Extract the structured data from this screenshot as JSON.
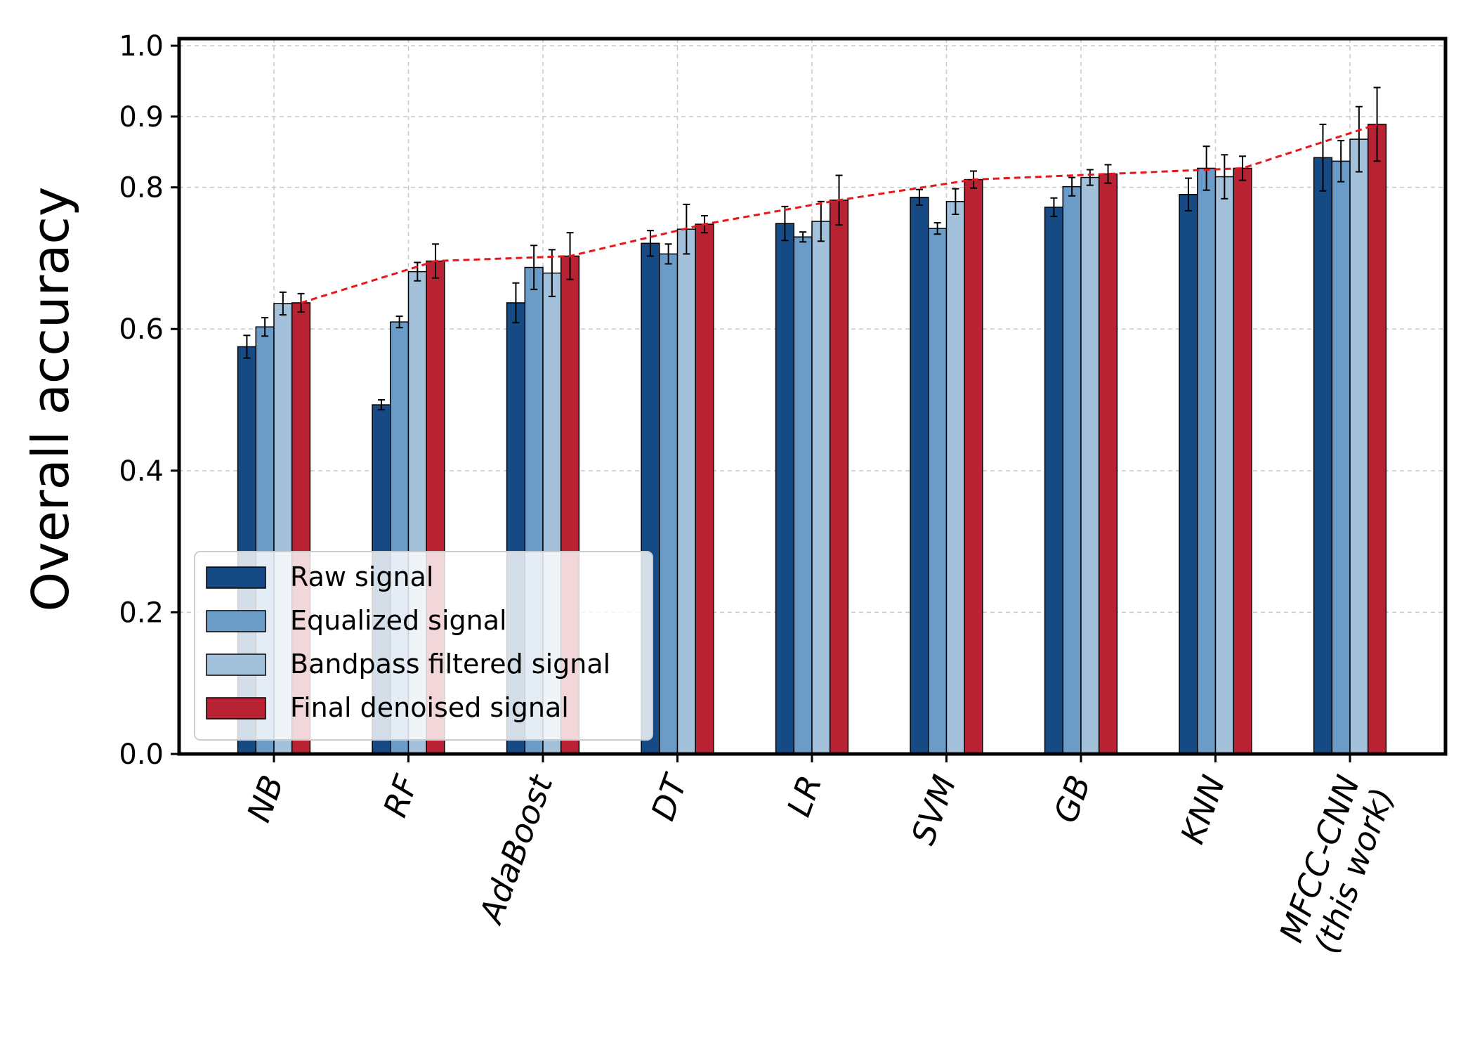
{
  "chart_data": {
    "type": "bar",
    "title": "",
    "xlabel": "",
    "ylabel": "Overall accuracy",
    "ylim": [
      0,
      1.01
    ],
    "yticks": [
      "0.0",
      "0.2",
      "0.4",
      "0.6",
      "0.8",
      "0.9",
      "1.0"
    ],
    "ytick_values": [
      0.0,
      0.2,
      0.4,
      0.6,
      0.8,
      0.9,
      1.0
    ],
    "grid": true,
    "legend_position": "lower-left",
    "categories": [
      "NB",
      "RF",
      "AdaBoost",
      "DT",
      "LR",
      "SVM",
      "GB",
      "KNN",
      "MFCC-CNN\n(this work)"
    ],
    "series": [
      {
        "name": "Raw signal",
        "color": "#154a85",
        "values": [
          0.575,
          0.493,
          0.637,
          0.721,
          0.749,
          0.786,
          0.772,
          0.79,
          0.842
        ],
        "errors": [
          0.016,
          0.007,
          0.028,
          0.018,
          0.024,
          0.011,
          0.013,
          0.023,
          0.047
        ]
      },
      {
        "name": "Equalized signal",
        "color": "#6b9cc8",
        "values": [
          0.603,
          0.61,
          0.687,
          0.706,
          0.73,
          0.742,
          0.801,
          0.827,
          0.837
        ],
        "errors": [
          0.013,
          0.008,
          0.031,
          0.014,
          0.007,
          0.008,
          0.013,
          0.031,
          0.029
        ]
      },
      {
        "name": "Bandpass filtered signal",
        "color": "#a4c1dc",
        "values": [
          0.636,
          0.681,
          0.679,
          0.741,
          0.752,
          0.78,
          0.814,
          0.815,
          0.868
        ],
        "errors": [
          0.016,
          0.013,
          0.033,
          0.035,
          0.028,
          0.018,
          0.011,
          0.031,
          0.046
        ]
      },
      {
        "name": "Final denoised signal",
        "color": "#b82232",
        "values": [
          0.637,
          0.696,
          0.703,
          0.748,
          0.782,
          0.811,
          0.819,
          0.827,
          0.889
        ],
        "errors": [
          0.013,
          0.024,
          0.033,
          0.012,
          0.035,
          0.012,
          0.013,
          0.017,
          0.052
        ]
      }
    ],
    "trend_line": {
      "color": "#e8161b",
      "style": "dashed",
      "values": [
        0.637,
        0.696,
        0.703,
        0.748,
        0.782,
        0.811,
        0.819,
        0.827,
        0.889
      ]
    }
  }
}
